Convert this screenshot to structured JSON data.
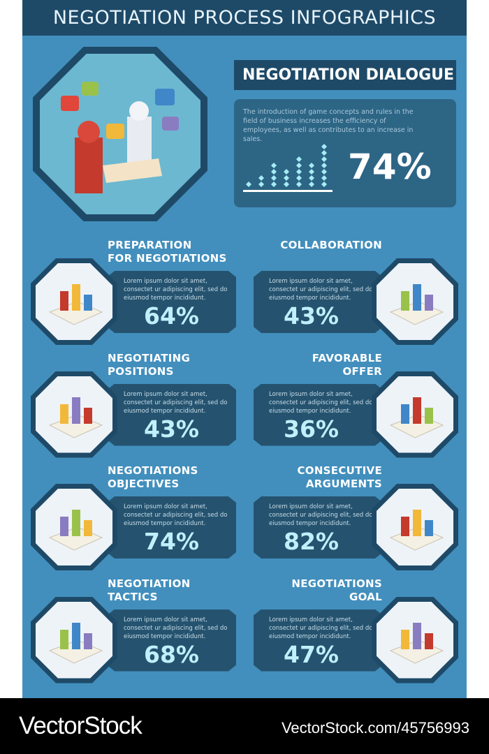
{
  "header": {
    "title": "NEGOTIATION PROCESS INFOGRAPHICS"
  },
  "dialogue": {
    "title": "NEGOTIATION DIALOGUE",
    "text": "The introduction of game concepts and rules in the field of business increases the efficiency of employees, as well as contributes to an increase in sales.",
    "percent": "74%",
    "dot_columns": [
      1,
      2,
      4,
      3,
      5,
      4,
      7
    ]
  },
  "cards": [
    {
      "title": "PREPARATION\nFOR NEGOTIATIONS",
      "text": "Lorem ipsum dolor sit amet, consectet ur adipiscing elit, sed do eiusmod tempor incididunt.",
      "percent": "64%",
      "side": "left",
      "icon": "presentation-board-icon"
    },
    {
      "title": "COLLABORATION",
      "text": "Lorem ipsum dolor sit amet, consectet ur adipiscing elit, sed do eiusmod tempor incididunt.",
      "percent": "43%",
      "side": "right",
      "icon": "puzzle-team-icon"
    },
    {
      "title": "NEGOTIATING\nPOSITIONS",
      "text": "Lorem ipsum dolor sit amet, consectet ur adipiscing elit, sed do eiusmod tempor incididunt.",
      "percent": "43%",
      "side": "left",
      "icon": "chess-pieces-icon"
    },
    {
      "title": "FAVORABLE\nOFFER",
      "text": "Lorem ipsum dolor sit amet, consectet ur adipiscing elit, sed do eiusmod tempor incididunt.",
      "percent": "36%",
      "side": "right",
      "icon": "money-chart-icon"
    },
    {
      "title": "NEGOTIATIONS\nOBJECTIVES",
      "text": "Lorem ipsum dolor sit amet, consectet ur adipiscing elit, sed do eiusmod tempor incididunt.",
      "percent": "74%",
      "side": "left",
      "icon": "map-pins-icon"
    },
    {
      "title": "CONSECUTIVE\nARGUMENTS",
      "text": "Lorem ipsum dolor sit amet, consectet ur adipiscing elit, sed do eiusmod tempor incididunt.",
      "percent": "82%",
      "side": "right",
      "icon": "dominoes-icon"
    },
    {
      "title": "NEGOTIATION\nTACTICS",
      "text": "Lorem ipsum dolor sit amet, consectet ur adipiscing elit, sed do eiusmod tempor incididunt.",
      "percent": "68%",
      "side": "left",
      "icon": "board-game-icon"
    },
    {
      "title": "NEGOTIATIONS\nGOAL",
      "text": "Lorem ipsum dolor sit amet, consectet ur adipiscing elit, sed do eiusmod tempor incididunt.",
      "percent": "47%",
      "side": "right",
      "icon": "target-icon"
    }
  ],
  "footer": {
    "brand": "VectorStock",
    "reference": "VectorStock.com/45756993"
  },
  "colors": {
    "background": "#428fbd",
    "dark": "#1e4a68",
    "panel": "#25536f",
    "accent": "#bff0fb"
  }
}
